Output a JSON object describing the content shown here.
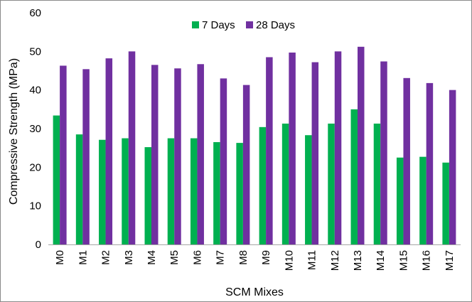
{
  "chart_data": {
    "type": "bar",
    "title": "",
    "xlabel": "SCM Mixes",
    "ylabel": "Compressive Strength (MPa)",
    "ylim": [
      0,
      60
    ],
    "yticks": [
      0,
      10,
      20,
      30,
      40,
      50,
      60
    ],
    "grid": false,
    "legend_position": "top-center",
    "categories": [
      "M0",
      "M1",
      "M2",
      "M3",
      "M4",
      "M5",
      "M6",
      "M7",
      "M8",
      "M9",
      "M10",
      "M11",
      "M12",
      "M13",
      "M14",
      "M15",
      "M16",
      "M17"
    ],
    "series": [
      {
        "name": "7 Days",
        "color": "#00b050",
        "values": [
          33.4,
          28.5,
          27.1,
          27.5,
          25.2,
          27.5,
          27.5,
          26.5,
          26.3,
          30.4,
          31.3,
          28.3,
          31.3,
          35.0,
          31.3,
          22.5,
          22.7,
          21.2
        ]
      },
      {
        "name": "28 Days",
        "color": "#7030a0",
        "values": [
          46.3,
          45.4,
          48.2,
          50.0,
          46.5,
          45.6,
          46.7,
          43.0,
          41.3,
          48.5,
          49.7,
          47.2,
          50.0,
          51.2,
          47.4,
          43.1,
          41.8,
          40.0
        ]
      }
    ]
  }
}
